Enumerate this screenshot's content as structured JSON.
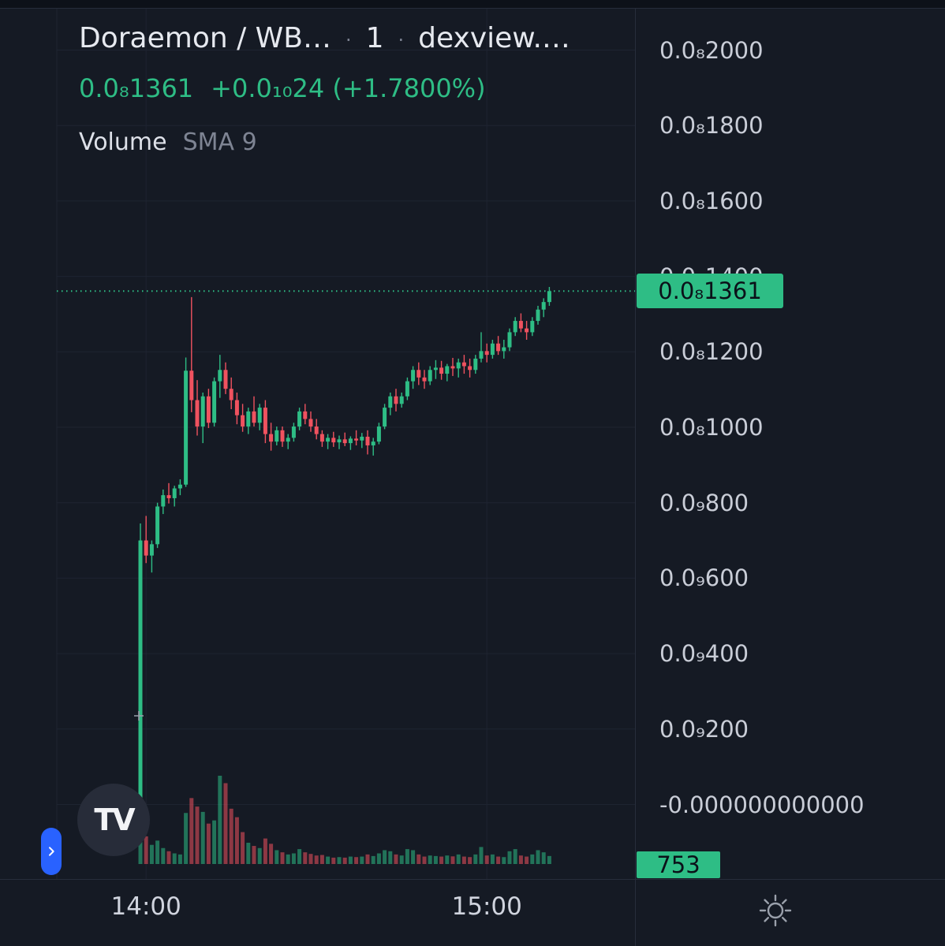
{
  "header": {
    "symbol": "Doraemon / WB…",
    "sep1": "·",
    "interval": "1",
    "sep2": "·",
    "exchange": "dexview.…",
    "price": "0.0₈1361",
    "change": "+0.0₁₀24 (+1.7800%)",
    "volume_label": "Volume",
    "sma_label": "SMA 9"
  },
  "logo": {
    "text": "TV"
  },
  "price_axis": {
    "last_price_label": "0.0₈1361",
    "last_volume_label": "753"
  },
  "colors": {
    "up": "#2ebd85",
    "down": "#f0525f",
    "background": "#151a24",
    "grid": "#1e2431",
    "axis_text": "#c9cdd7",
    "tag_text": "#0b1119",
    "accent_blue": "#2962ff"
  },
  "chart_data": {
    "type": "candlestick",
    "title": "Doraemon / WB… · 1 · dexview.…",
    "last_price": "0.0₈1361",
    "change_abs": "+0.0₁₀24",
    "change_pct": "+1.7800%",
    "volume_last": 753,
    "volume_sma_period": 9,
    "legend": [
      "Volume",
      "SMA 9"
    ],
    "y_axis": {
      "note": "values in units of 0.0₈ notation; 1361 = 0.0₈1361",
      "ticks": [
        {
          "value": 2000,
          "label": "0.0₈2000"
        },
        {
          "value": 1800,
          "label": "0.0₈1800"
        },
        {
          "value": 1600,
          "label": "0.0₈1600"
        },
        {
          "value": 1400,
          "label": "0.0₈1400"
        },
        {
          "value": 1200,
          "label": "0.0₈1200"
        },
        {
          "value": 1000,
          "label": "0.0₈1000"
        },
        {
          "value": 800,
          "label": "0.0₉800"
        },
        {
          "value": 600,
          "label": "0.0₉600"
        },
        {
          "value": 400,
          "label": "0.0₉400"
        },
        {
          "value": 200,
          "label": "0.0₉200"
        },
        {
          "value": 0,
          "label": "-0.000000000000"
        }
      ]
    },
    "x_axis": {
      "labels": [
        {
          "text": "14:00",
          "index": 1
        },
        {
          "text": "15:00",
          "index": 61
        }
      ]
    },
    "candles": {
      "start_time": "13:59",
      "step_minutes": 1,
      "columns": [
        "open",
        "high",
        "low",
        "close",
        "volume"
      ],
      "ohlcv": [
        [
          15,
          745,
          8,
          700,
          5200
        ],
        [
          700,
          765,
          640,
          660,
          2600
        ],
        [
          660,
          700,
          615,
          690,
          1800
        ],
        [
          690,
          800,
          680,
          790,
          2200
        ],
        [
          790,
          835,
          770,
          820,
          1500
        ],
        [
          820,
          852,
          798,
          812,
          1200
        ],
        [
          812,
          845,
          790,
          838,
          1000
        ],
        [
          838,
          862,
          820,
          848,
          900
        ],
        [
          848,
          1185,
          842,
          1150,
          4800
        ],
        [
          1150,
          1345,
          1040,
          1072,
          6200
        ],
        [
          1072,
          1125,
          978,
          1002,
          5400
        ],
        [
          1002,
          1092,
          958,
          1082,
          4900
        ],
        [
          1082,
          1102,
          998,
          1012,
          3800
        ],
        [
          1012,
          1132,
          1002,
          1122,
          4100
        ],
        [
          1122,
          1192,
          1078,
          1152,
          8300
        ],
        [
          1152,
          1172,
          1088,
          1102,
          7600
        ],
        [
          1102,
          1132,
          1048,
          1072,
          5200
        ],
        [
          1072,
          1092,
          1008,
          1032,
          4400
        ],
        [
          1032,
          1062,
          988,
          1002,
          3000
        ],
        [
          1002,
          1052,
          982,
          1042,
          2000
        ],
        [
          1042,
          1082,
          1002,
          1012,
          1700
        ],
        [
          1012,
          1062,
          992,
          1052,
          1500
        ],
        [
          1052,
          1072,
          958,
          982,
          2400
        ],
        [
          982,
          1012,
          938,
          962,
          1900
        ],
        [
          962,
          1002,
          952,
          992,
          1300
        ],
        [
          992,
          1002,
          948,
          962,
          1100
        ],
        [
          962,
          982,
          942,
          972,
          900
        ],
        [
          972,
          1012,
          962,
          1002,
          1000
        ],
        [
          1002,
          1052,
          992,
          1042,
          1400
        ],
        [
          1042,
          1062,
          1008,
          1022,
          1100
        ],
        [
          1022,
          1042,
          988,
          1002,
          950
        ],
        [
          1002,
          1022,
          968,
          982,
          800
        ],
        [
          982,
          992,
          948,
          962,
          850
        ],
        [
          962,
          982,
          942,
          972,
          700
        ],
        [
          972,
          988,
          948,
          960,
          600
        ],
        [
          960,
          978,
          942,
          968,
          650
        ],
        [
          968,
          986,
          950,
          958,
          600
        ],
        [
          958,
          976,
          940,
          970,
          700
        ],
        [
          970,
          992,
          952,
          965,
          650
        ],
        [
          965,
          985,
          945,
          975,
          700
        ],
        [
          975,
          992,
          928,
          952,
          900
        ],
        [
          952,
          972,
          925,
          962,
          750
        ],
        [
          962,
          1012,
          955,
          1002,
          1000
        ],
        [
          1002,
          1062,
          995,
          1052,
          1300
        ],
        [
          1052,
          1092,
          1032,
          1082,
          1200
        ],
        [
          1082,
          1102,
          1042,
          1062,
          900
        ],
        [
          1062,
          1092,
          1052,
          1082,
          800
        ],
        [
          1082,
          1132,
          1072,
          1122,
          1400
        ],
        [
          1122,
          1162,
          1102,
          1152,
          1300
        ],
        [
          1152,
          1172,
          1112,
          1132,
          900
        ],
        [
          1132,
          1152,
          1102,
          1122,
          700
        ],
        [
          1122,
          1162,
          1112,
          1152,
          800
        ],
        [
          1152,
          1178,
          1128,
          1158,
          750
        ],
        [
          1158,
          1176,
          1126,
          1142,
          700
        ],
        [
          1142,
          1168,
          1122,
          1162,
          800
        ],
        [
          1162,
          1184,
          1136,
          1156,
          720
        ],
        [
          1156,
          1182,
          1132,
          1172,
          900
        ],
        [
          1172,
          1192,
          1142,
          1162,
          700
        ],
        [
          1162,
          1182,
          1132,
          1152,
          650
        ],
        [
          1152,
          1192,
          1142,
          1182,
          900
        ],
        [
          1182,
          1252,
          1172,
          1202,
          1600
        ],
        [
          1202,
          1222,
          1172,
          1192,
          800
        ],
        [
          1192,
          1232,
          1182,
          1222,
          900
        ],
        [
          1222,
          1242,
          1192,
          1202,
          700
        ],
        [
          1202,
          1232,
          1182,
          1212,
          650
        ],
        [
          1212,
          1262,
          1202,
          1252,
          1200
        ],
        [
          1252,
          1292,
          1242,
          1282,
          1400
        ],
        [
          1282,
          1302,
          1252,
          1262,
          800
        ],
        [
          1262,
          1282,
          1232,
          1252,
          700
        ],
        [
          1252,
          1292,
          1242,
          1282,
          900
        ],
        [
          1282,
          1322,
          1272,
          1312,
          1300
        ],
        [
          1312,
          1342,
          1292,
          1332,
          1100
        ],
        [
          1332,
          1372,
          1322,
          1361,
          753
        ]
      ]
    }
  }
}
